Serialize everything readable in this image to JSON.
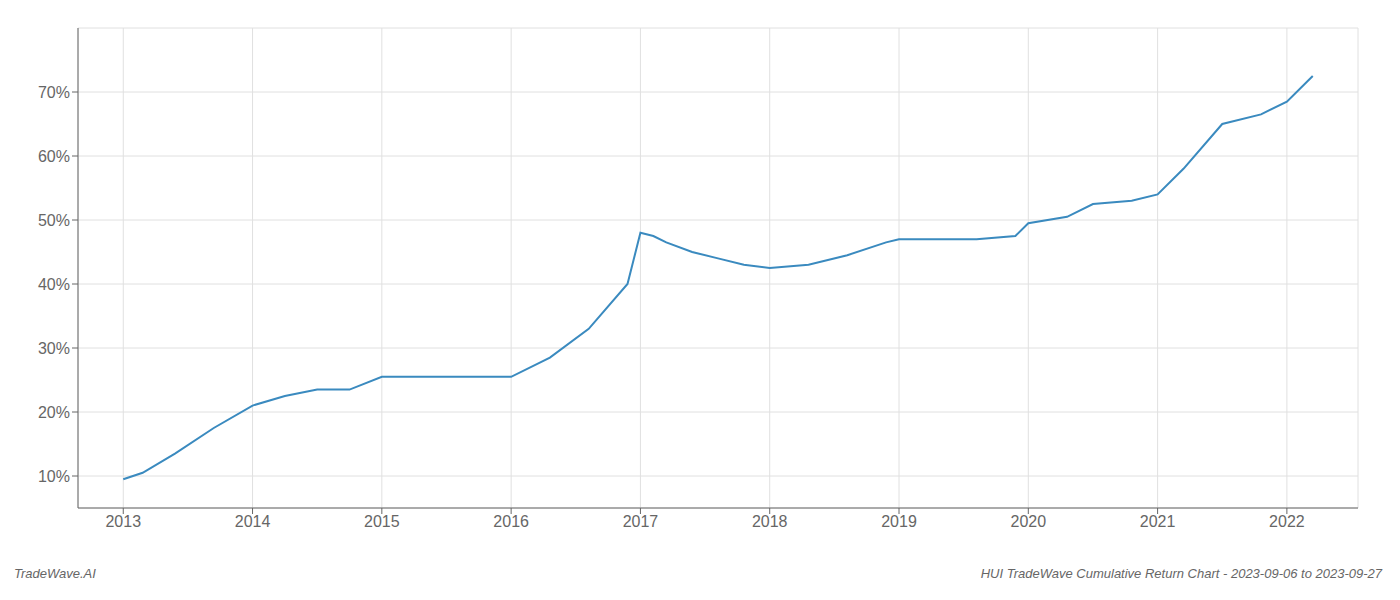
{
  "chart_data": {
    "type": "line",
    "x": [
      2013.0,
      2013.15,
      2013.4,
      2013.7,
      2014.0,
      2014.25,
      2014.5,
      2014.75,
      2015.0,
      2015.5,
      2016.0,
      2016.3,
      2016.6,
      2016.9,
      2017.0,
      2017.1,
      2017.2,
      2017.4,
      2017.6,
      2017.8,
      2018.0,
      2018.3,
      2018.6,
      2018.9,
      2019.0,
      2019.3,
      2019.6,
      2019.9,
      2020.0,
      2020.3,
      2020.5,
      2020.8,
      2021.0,
      2021.2,
      2021.5,
      2021.8,
      2022.0,
      2022.2
    ],
    "values": [
      9.5,
      10.5,
      13.5,
      17.5,
      21.0,
      22.5,
      23.5,
      23.5,
      25.5,
      25.5,
      25.5,
      28.5,
      33.0,
      40.0,
      48.0,
      47.5,
      46.5,
      45.0,
      44.0,
      43.0,
      42.5,
      43.0,
      44.5,
      46.5,
      47.0,
      47.0,
      47.0,
      47.5,
      49.5,
      50.5,
      52.5,
      53.0,
      54.0,
      58.0,
      65.0,
      66.5,
      68.5,
      72.5
    ],
    "color": "#3a8abf",
    "xlim": [
      2012.65,
      2022.55
    ],
    "xticks": [
      2013,
      2014,
      2015,
      2016,
      2017,
      2018,
      2019,
      2020,
      2021,
      2022
    ],
    "ylim": [
      5,
      80
    ],
    "yticks": [
      {
        "value": 10,
        "label": "10%"
      },
      {
        "value": 20,
        "label": "20%"
      },
      {
        "value": 30,
        "label": "30%"
      },
      {
        "value": 40,
        "label": "40%"
      },
      {
        "value": 50,
        "label": "50%"
      },
      {
        "value": 60,
        "label": "60%"
      },
      {
        "value": 70,
        "label": "70%"
      }
    ],
    "grid": true,
    "annotations": [
      "TradeWave.AI",
      "HUI TradeWave Cumulative Return Chart - 2023-09-06 to 2023-09-27"
    ]
  }
}
